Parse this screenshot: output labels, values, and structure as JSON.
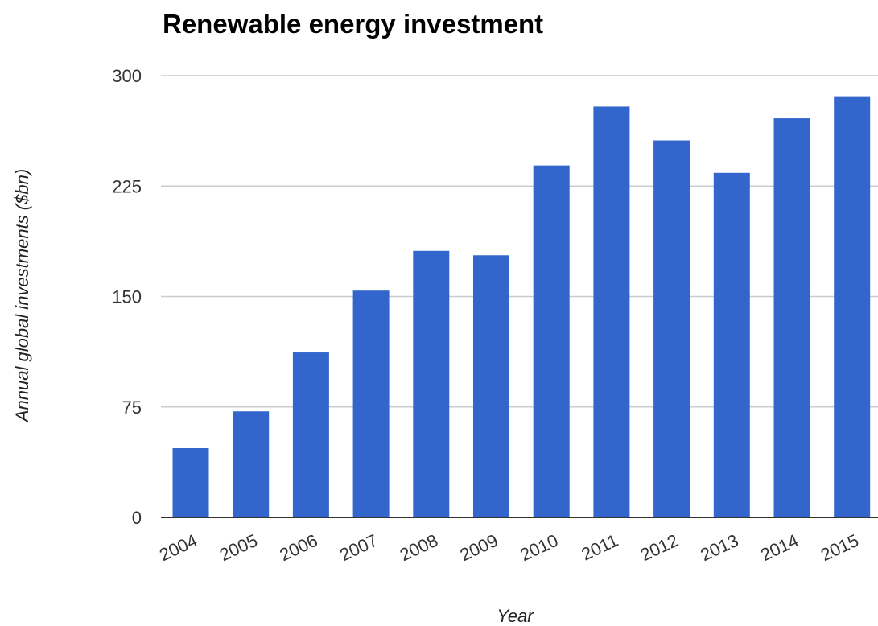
{
  "chart_data": {
    "type": "bar",
    "title": "Renewable energy investment",
    "xlabel": "Year",
    "ylabel": "Annual global investments ($bn)",
    "categories": [
      "2004",
      "2005",
      "2006",
      "2007",
      "2008",
      "2009",
      "2010",
      "2011",
      "2012",
      "2013",
      "2014",
      "2015"
    ],
    "values": [
      47,
      72,
      112,
      154,
      181,
      178,
      239,
      279,
      256,
      234,
      271,
      286
    ],
    "ylim": [
      0,
      300
    ],
    "yticks": [
      "0",
      "75",
      "150",
      "225",
      "300"
    ],
    "grid": true,
    "bar_color": "#3366cc",
    "grid_color": "#cccccc",
    "axis_color": "#333333"
  }
}
